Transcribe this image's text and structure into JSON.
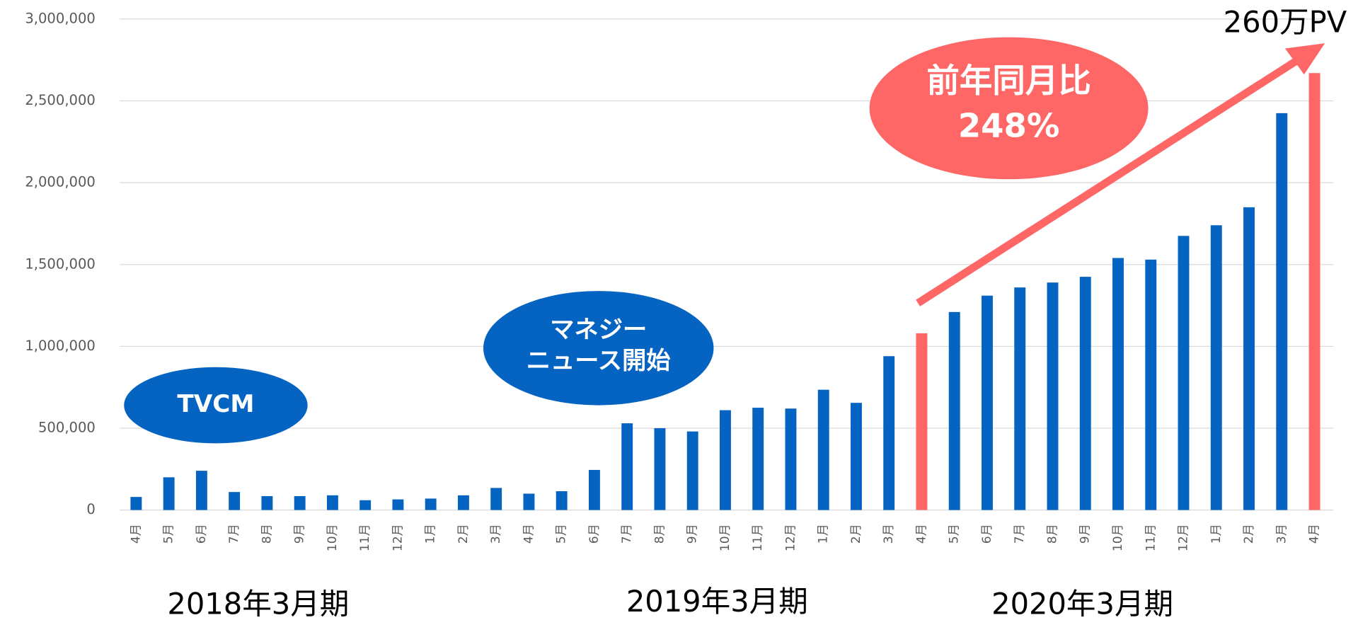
{
  "chart_data": {
    "type": "bar",
    "categories": [
      "4月",
      "5月",
      "6月",
      "7月",
      "8月",
      "9月",
      "10月",
      "11月",
      "12月",
      "1月",
      "2月",
      "3月",
      "4月",
      "5月",
      "6月",
      "7月",
      "8月",
      "9月",
      "10月",
      "11月",
      "12月",
      "1月",
      "2月",
      "3月",
      "4月",
      "5月",
      "6月",
      "7月",
      "8月",
      "9月",
      "10月",
      "11月",
      "12月",
      "1月",
      "2月",
      "3月",
      "4月"
    ],
    "values": [
      80000,
      200000,
      240000,
      110000,
      85000,
      85000,
      90000,
      60000,
      65000,
      70000,
      90000,
      135000,
      100000,
      115000,
      245000,
      530000,
      500000,
      480000,
      610000,
      625000,
      620000,
      735000,
      655000,
      940000,
      1080000,
      1210000,
      1310000,
      1360000,
      1390000,
      1425000,
      1540000,
      1530000,
      1675000,
      1740000,
      1850000,
      2425000,
      2670000
    ],
    "colors": [
      "#0563c1",
      "#0563c1",
      "#0563c1",
      "#0563c1",
      "#0563c1",
      "#0563c1",
      "#0563c1",
      "#0563c1",
      "#0563c1",
      "#0563c1",
      "#0563c1",
      "#0563c1",
      "#0563c1",
      "#0563c1",
      "#0563c1",
      "#0563c1",
      "#0563c1",
      "#0563c1",
      "#0563c1",
      "#0563c1",
      "#0563c1",
      "#0563c1",
      "#0563c1",
      "#0563c1",
      "#ff6666",
      "#0563c1",
      "#0563c1",
      "#0563c1",
      "#0563c1",
      "#0563c1",
      "#0563c1",
      "#0563c1",
      "#0563c1",
      "#0563c1",
      "#0563c1",
      "#0563c1",
      "#ff6666"
    ],
    "ylim": [
      0,
      3000000
    ],
    "yticks": [
      0,
      {
        "value": 500000,
        "label": "500,000"
      },
      {
        "value": 1000000,
        "label": "1,000,000"
      },
      {
        "value": 1500000,
        "label": "1,500,000"
      },
      {
        "value": 2000000,
        "label": "2,000,000"
      },
      {
        "value": 2500000,
        "label": "2,500,000"
      },
      {
        "value": 3000000,
        "label": "3,000,000"
      }
    ],
    "grid": true,
    "periods": [
      "2018年3月期",
      "2019年3月期",
      "2020年3月期"
    ],
    "annotations": {
      "tvcm": "TVCM",
      "money_news": [
        "マネジー",
        "ニュース開始"
      ],
      "yoy": [
        "前年同月比",
        "248%"
      ],
      "target": "260万PV"
    }
  }
}
